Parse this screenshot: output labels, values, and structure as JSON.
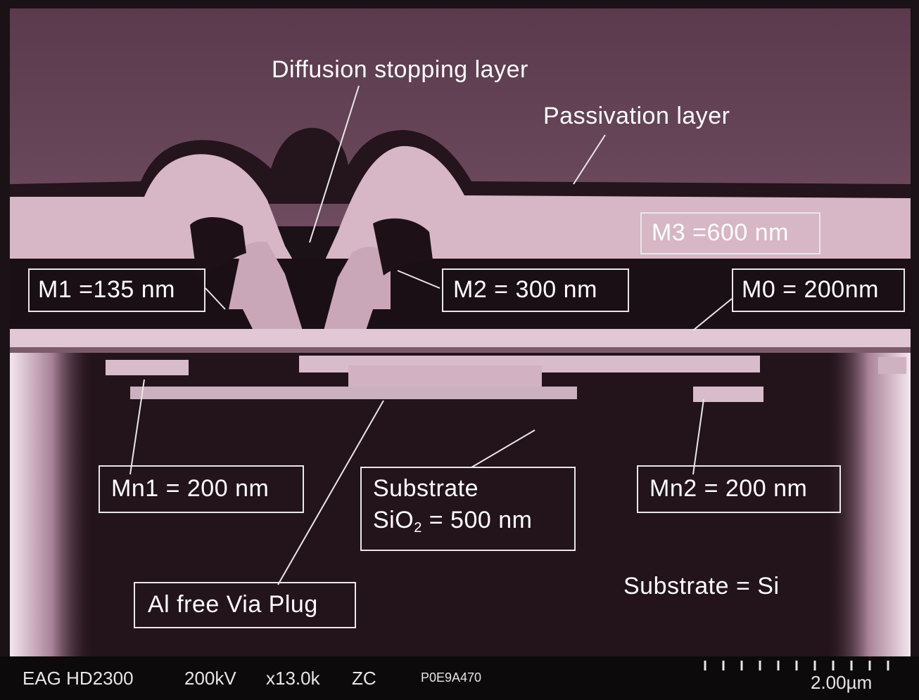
{
  "labels": {
    "diffusion": "Diffusion stopping layer",
    "passivation": "Passivation layer",
    "m3": "M3 =600 nm",
    "m1": "M1 =135 nm",
    "m2": "M2 = 300 nm",
    "m0": "M0 = 200nm",
    "mn1": "Mn1 = 200 nm",
    "substrate_line1": "Substrate",
    "substrate_sio_prefix": "SiO",
    "substrate_sio_subscript": "2",
    "substrate_sio_suffix": " = 500 nm",
    "mn2": "Mn2 = 200 nm",
    "via_plug": "Al free Via Plug",
    "substrate_si": "Substrate = Si"
  },
  "info_bar": {
    "instrument": "EAG HD2300",
    "voltage": "200kV",
    "magnification": "x13.0k",
    "mode": "ZC",
    "image_id": "P0E9A470",
    "scale": "2.00µm"
  }
}
